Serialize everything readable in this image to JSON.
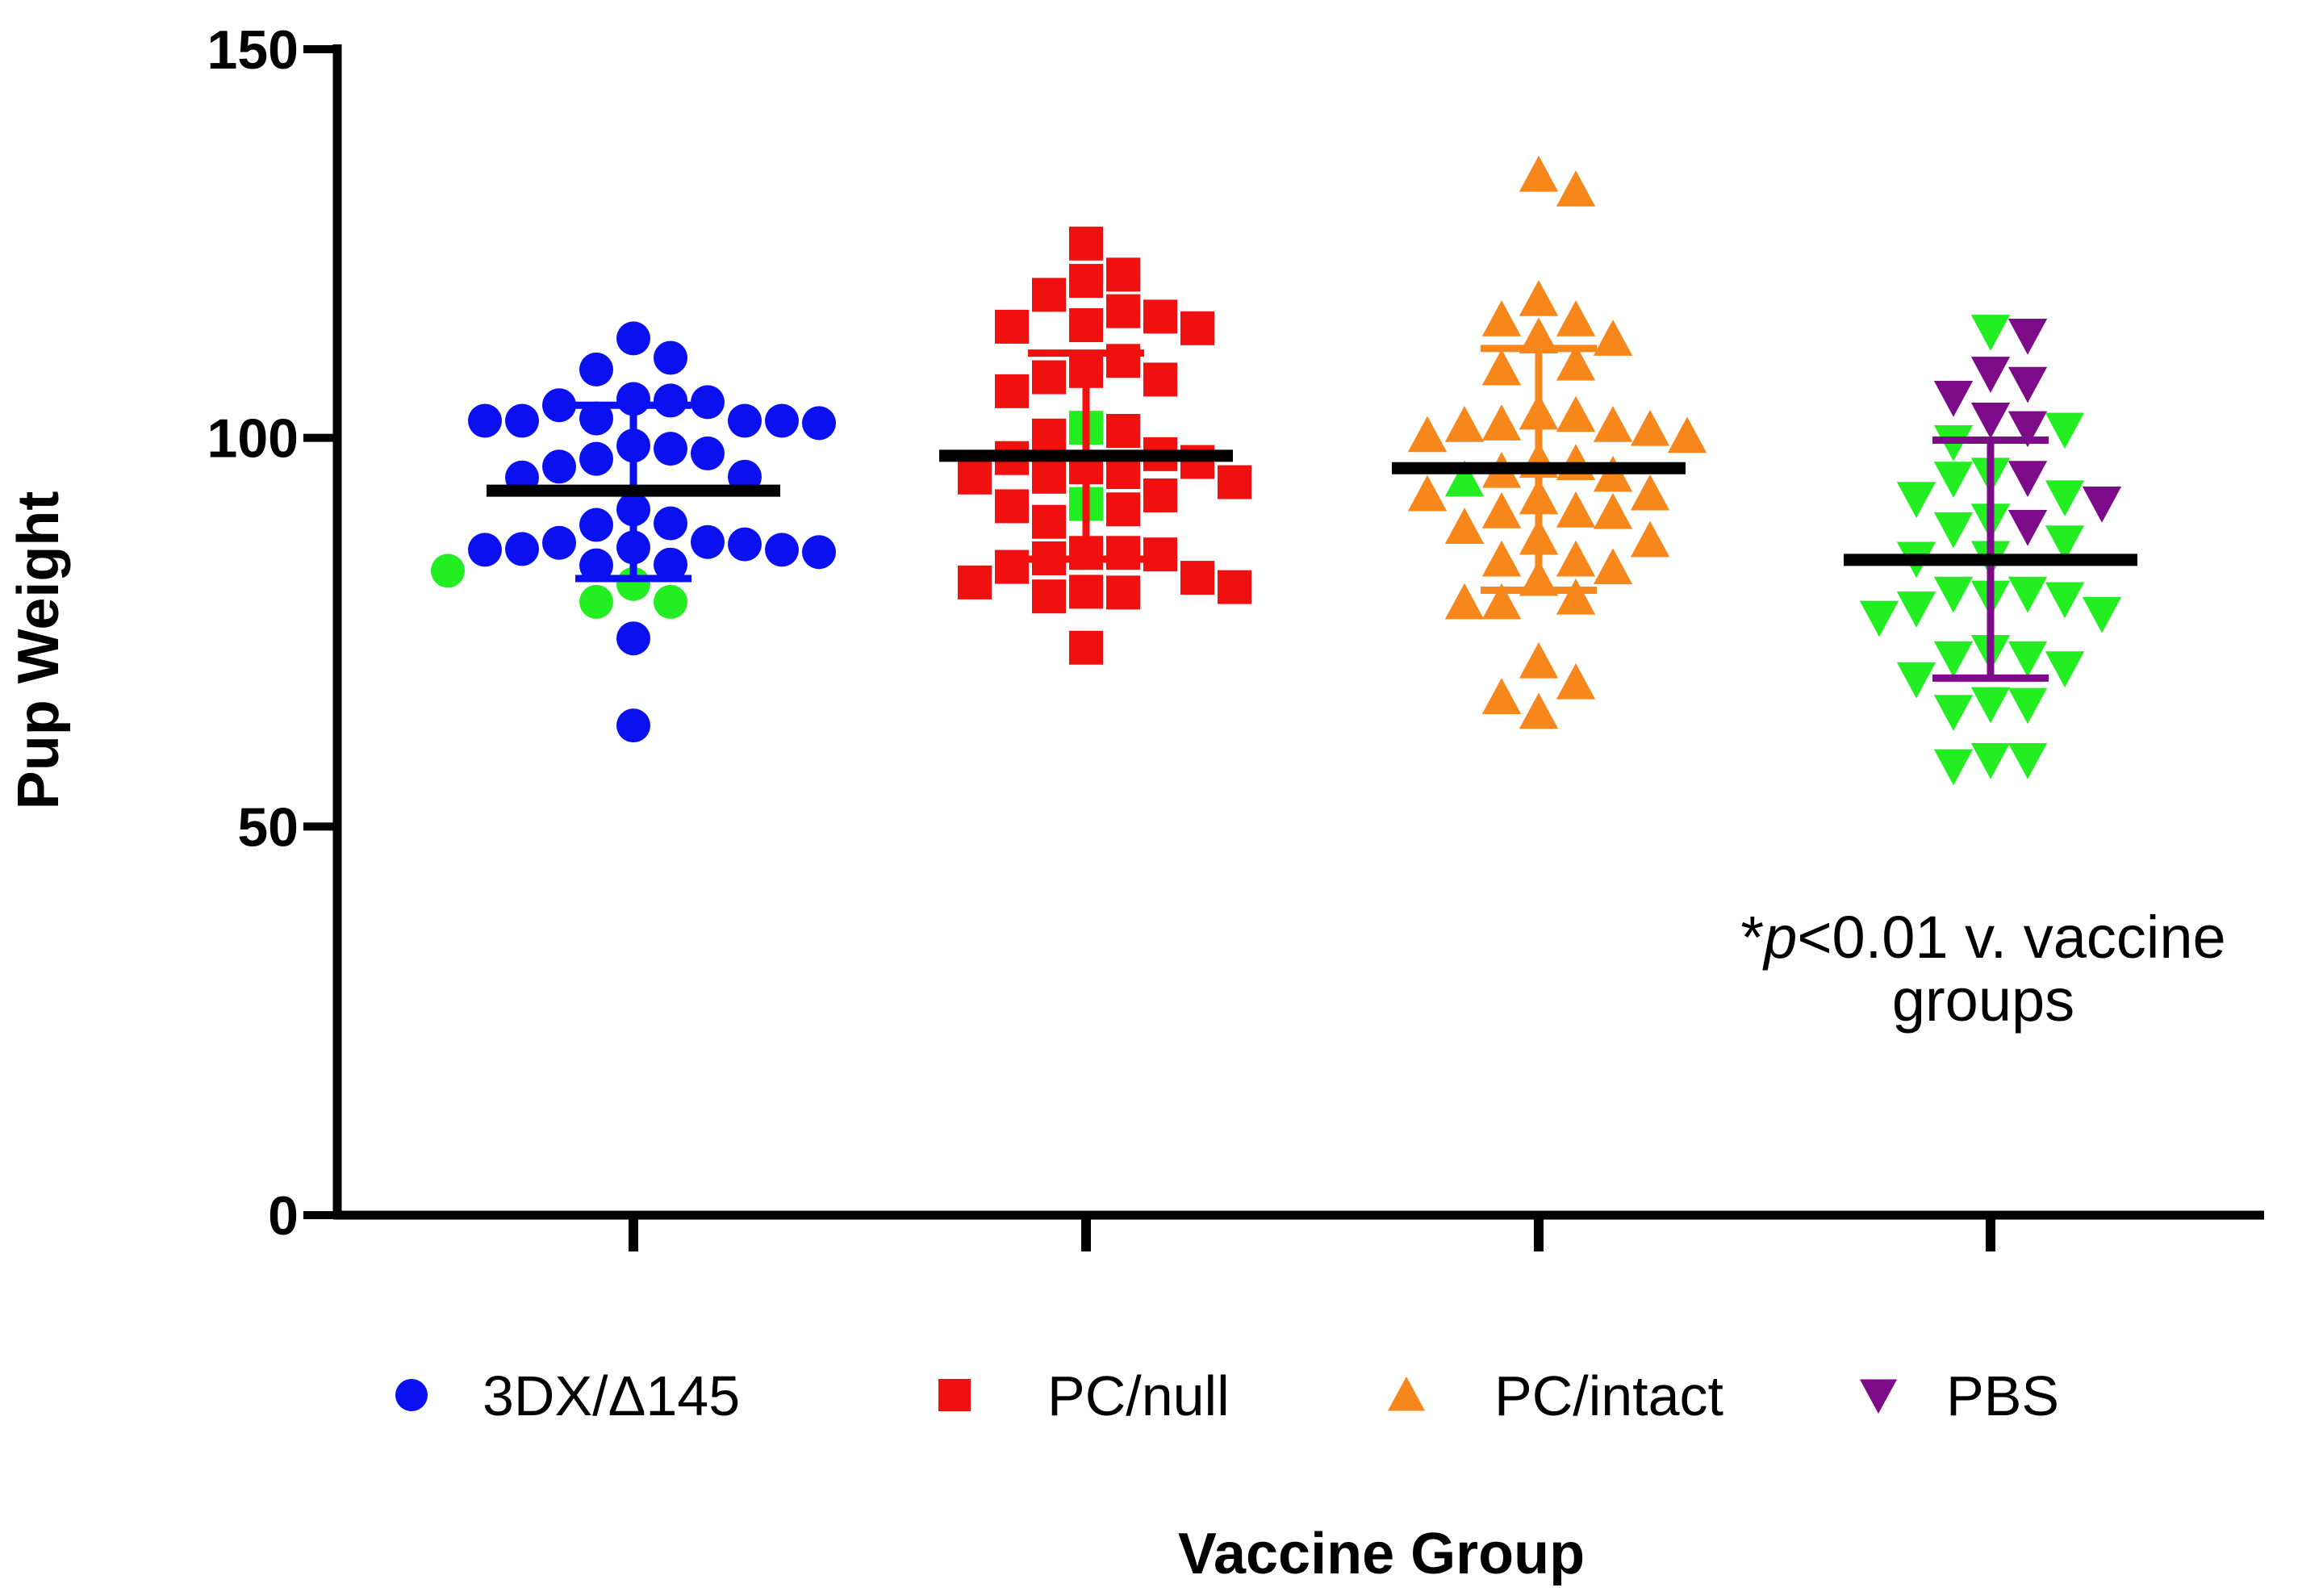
{
  "chart_data": {
    "type": "scatter",
    "xlabel": "Vaccine Group",
    "ylabel": "Pup Weight",
    "ylim": [
      0,
      150
    ],
    "yticks": [
      0,
      50,
      100,
      150
    ],
    "grid": false,
    "legend_position": "bottom",
    "annotation": {
      "star": "*",
      "p": "p",
      "rest": "<0.01 v. vaccine",
      "line2": "groups"
    },
    "colors": {
      "outlier": "#22ee22",
      "mean_line": "#000000"
    },
    "series": [
      {
        "name": "3DX/Δ145",
        "marker": "circle",
        "color": "#0a10f0",
        "mean": 93.2,
        "sd_upper": 104.2,
        "sd_lower": 81.9,
        "values": [
          112.8,
          110.3,
          108.8,
          105.0,
          104.6,
          104.2,
          104.8,
          102.2,
          102.2,
          102.2,
          101.9,
          102.5,
          102.2,
          99.0,
          98.6,
          98.0,
          97.3,
          96.3,
          95.0,
          94.9,
          90.8,
          89.0,
          88.8,
          86.6,
          86.5,
          86.3,
          85.6,
          85.3,
          85.6,
          85.7,
          85.9,
          83.6,
          83.7,
          74.2,
          63.0
        ],
        "highlight_values": [
          82.9,
          81.2,
          78.9,
          78.9
        ]
      },
      {
        "name": "PC/null",
        "marker": "square",
        "color": "#f01010",
        "mean": 97.7,
        "sd_upper": 110.9,
        "sd_lower": 84.4,
        "values": [
          125.0,
          121.0,
          120.2,
          118.4,
          116.3,
          115.6,
          114.5,
          114.3,
          114.1,
          109.9,
          108.6,
          107.8,
          107.5,
          106.0,
          100.3,
          100.9,
          97.9,
          97.4,
          96.9,
          96.2,
          95.6,
          95.0,
          94.9,
          94.3,
          92.6,
          91.2,
          90.8,
          89.2,
          85.2,
          85.2,
          85.0,
          84.5,
          83.4,
          82.0,
          81.4,
          80.8,
          80.2,
          79.6,
          80.1,
          73.0
        ],
        "highlight_values": [
          101.3,
          91.5
        ]
      },
      {
        "name": "PC/intact",
        "marker": "triangle-up",
        "color": "#f7861b",
        "mean": 96.1,
        "sd_upper": 111.5,
        "sd_lower": 80.4,
        "values": [
          133.8,
          131.9,
          117.8,
          115.2,
          115.2,
          113.0,
          112.7,
          109.5,
          108.9,
          103.2,
          102.9,
          101.8,
          101.6,
          101.6,
          101.1,
          100.3,
          100.2,
          97.0,
          96.7,
          95.7,
          95.2,
          92.8,
          92.7,
          92.3,
          90.6,
          90.5,
          90.4,
          88.5,
          87.1,
          86.8,
          84.3,
          84.3,
          83.3,
          81.8,
          79.4,
          78.8,
          78.8,
          71.2,
          68.5,
          66.6,
          64.7
        ],
        "highlight_values": [
          94.6
        ]
      },
      {
        "name": "PBS",
        "marker": "triangle-down",
        "color": "#7d0a88",
        "mean": 84.3,
        "sd_upper": 99.7,
        "sd_lower": 69.1,
        "values": [
          113.2,
          108.3,
          107.0,
          105.2,
          102.4,
          101.3,
          94.9,
          91.6,
          88.6
        ],
        "highlight_values": [
          113.7,
          101.1,
          99.5,
          95.3,
          94.8,
          92.4,
          92.2,
          89.4,
          88.3,
          86.6,
          84.6,
          84.5,
          80.0,
          80.0,
          79.5,
          79.3,
          78.1,
          77.4,
          76.9,
          72.5,
          71.7,
          71.7,
          70.4,
          69.0,
          65.8,
          65.7,
          64.8,
          58.6,
          58.6,
          57.8
        ]
      }
    ]
  }
}
